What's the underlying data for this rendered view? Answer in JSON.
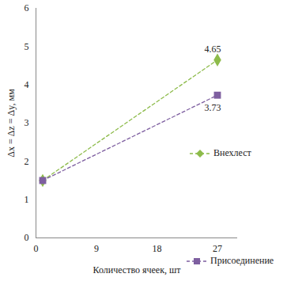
{
  "chart_data": {
    "type": "line",
    "x_label": "Количество ячеек, шт",
    "y_label": "Δx = Δz = Δy, мм",
    "xlim": [
      0,
      30
    ],
    "xticks": [
      0,
      9,
      18,
      27
    ],
    "ylim": [
      0,
      6
    ],
    "yticks": [
      0,
      1,
      2,
      3,
      4,
      5,
      6
    ],
    "grid": false,
    "data_labels": true,
    "x": [
      1,
      27
    ],
    "series": [
      {
        "name": "Внехлест",
        "color": "#8dbb4a",
        "marker": "diamond",
        "line_style": "dashed",
        "values": [
          1.5,
          4.65
        ],
        "value_labels": [
          null,
          "4.65"
        ]
      },
      {
        "name": "Присоединение",
        "color": "#7e5fa0",
        "marker": "square",
        "line_style": "dashed",
        "values": [
          1.5,
          3.73
        ],
        "value_labels": [
          null,
          "3.73"
        ]
      }
    ]
  }
}
